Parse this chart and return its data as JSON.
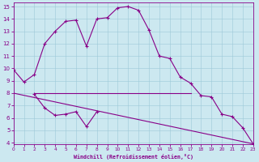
{
  "xlabel": "Windchill (Refroidissement éolien,°C)",
  "background_color": "#cce8f0",
  "line_color": "#880088",
  "xlim": [
    0,
    23
  ],
  "ylim": [
    4,
    15
  ],
  "yticks": [
    4,
    5,
    6,
    7,
    8,
    9,
    10,
    11,
    12,
    13,
    14,
    15
  ],
  "xticks": [
    0,
    1,
    2,
    3,
    4,
    5,
    6,
    7,
    8,
    9,
    10,
    11,
    12,
    13,
    14,
    15,
    16,
    17,
    18,
    19,
    20,
    21,
    22,
    23
  ],
  "series1_x": [
    0,
    1,
    2,
    3,
    4,
    5,
    6,
    7,
    8,
    9,
    10,
    11,
    12,
    13,
    14,
    15,
    16,
    17,
    18,
    19,
    20,
    21,
    22,
    23
  ],
  "series1_y": [
    9.9,
    8.9,
    9.5,
    12.0,
    13.0,
    13.8,
    13.9,
    11.8,
    14.0,
    14.1,
    14.9,
    15.0,
    14.7,
    13.1,
    11.0,
    10.8,
    9.3,
    8.8,
    7.8,
    7.7,
    6.3,
    6.1,
    5.2,
    3.9
  ],
  "series2_x": [
    2,
    3,
    4,
    5,
    6,
    7,
    8
  ],
  "series2_y": [
    7.9,
    6.8,
    6.2,
    6.3,
    6.5,
    5.3,
    6.5
  ],
  "series3_x": [
    2,
    17
  ],
  "series3_y": [
    8.0,
    8.0
  ],
  "series4_x": [
    0,
    23
  ],
  "series4_y": [
    8.0,
    3.9
  ]
}
